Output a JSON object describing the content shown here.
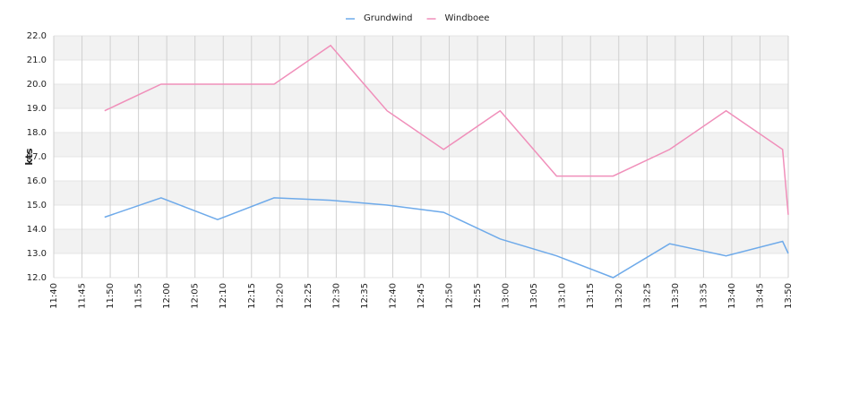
{
  "chart_data": {
    "type": "line",
    "y_label": "kts",
    "x": [
      "11:49",
      "11:59",
      "12:09",
      "12:19",
      "12:29",
      "12:39",
      "12:49",
      "12:59",
      "13:09",
      "13:19",
      "13:29",
      "13:39",
      "13:49",
      "13:50"
    ],
    "series": [
      {
        "name": "Grundwind",
        "color": "#6eaaea",
        "values": [
          14.5,
          15.3,
          14.4,
          15.3,
          15.2,
          15.0,
          14.7,
          13.6,
          12.9,
          12.0,
          13.4,
          12.9,
          13.5,
          13.0
        ]
      },
      {
        "name": "Windboee",
        "color": "#f08fba",
        "values": [
          18.9,
          20.0,
          20.0,
          20.0,
          21.6,
          18.9,
          17.3,
          18.9,
          16.2,
          16.2,
          17.3,
          18.9,
          17.3,
          14.6
        ]
      }
    ],
    "xlim": [
      "11:40",
      "13:50"
    ],
    "xticks": [
      "11:40",
      "11:45",
      "11:50",
      "11:55",
      "12:00",
      "12:05",
      "12:10",
      "12:15",
      "12:20",
      "12:25",
      "12:30",
      "12:35",
      "12:40",
      "12:45",
      "12:50",
      "12:55",
      "13:00",
      "13:05",
      "13:10",
      "13:15",
      "13:20",
      "13:25",
      "13:30",
      "13:35",
      "13:40",
      "13:45",
      "13:50"
    ],
    "ylim": [
      12,
      22
    ],
    "yticks": [
      {
        "value": 12,
        "label": "12.0"
      },
      {
        "value": 13,
        "label": "13.0"
      },
      {
        "value": 14,
        "label": "14.0"
      },
      {
        "value": 15,
        "label": "15.0"
      },
      {
        "value": 16,
        "label": "16.0"
      },
      {
        "value": 17,
        "label": "17.0"
      },
      {
        "value": 18,
        "label": "18.0"
      },
      {
        "value": 19,
        "label": "19.0"
      },
      {
        "value": 20,
        "label": "20.0"
      },
      {
        "value": 21,
        "label": "21.0"
      },
      {
        "value": 22,
        "label": "22.0"
      }
    ],
    "grid": true,
    "legend": "top"
  }
}
